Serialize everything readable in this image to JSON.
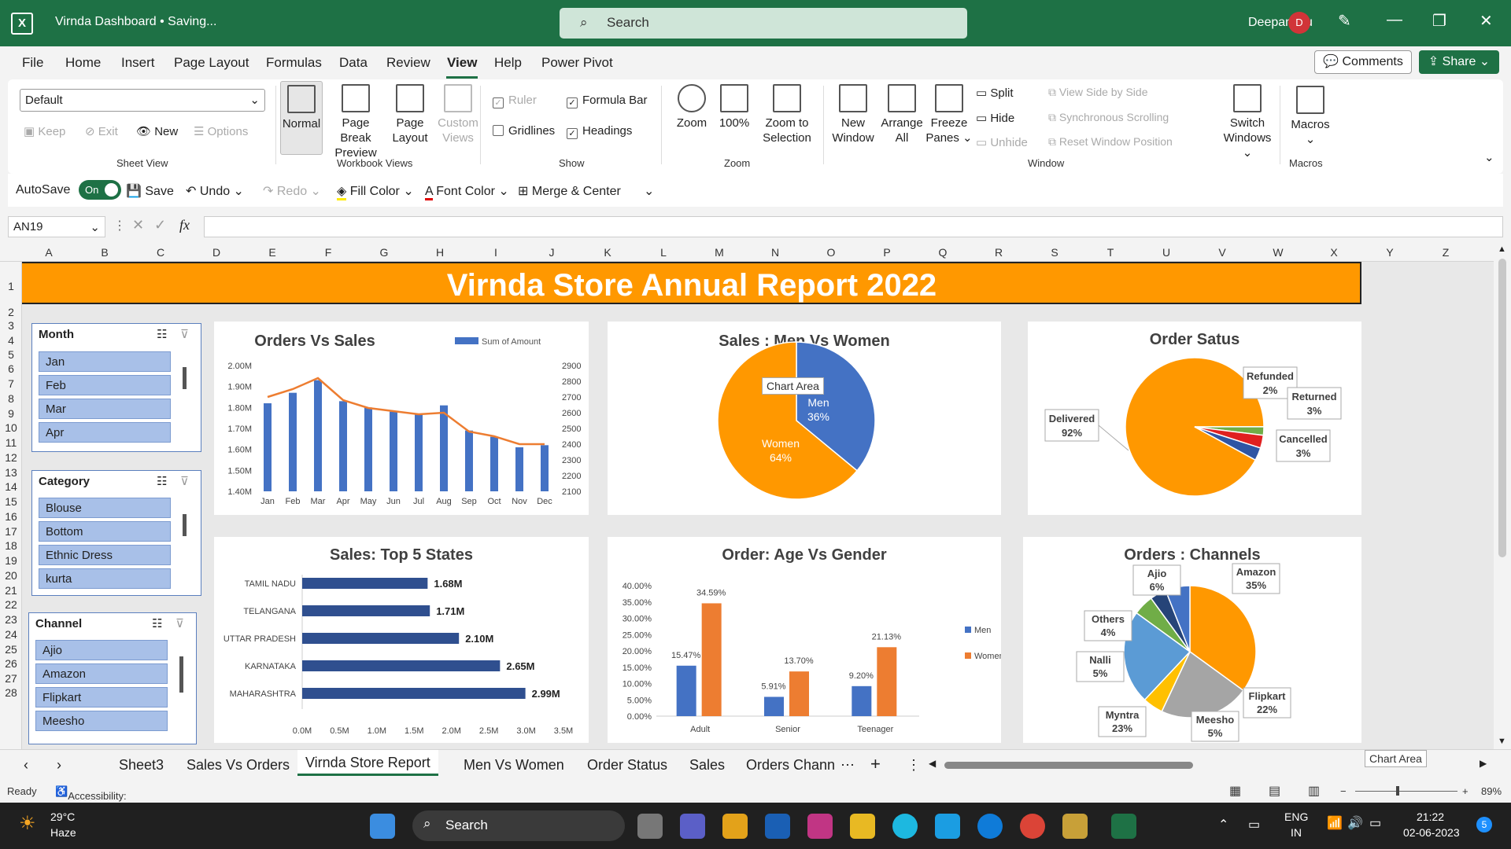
{
  "window": {
    "title": "Virnda Dashboard • Saving...",
    "search_placeholder": "Search",
    "user": "Deepanshu",
    "user_initial": "D"
  },
  "menu": [
    "File",
    "Home",
    "Insert",
    "Page Layout",
    "Formulas",
    "Data",
    "Review",
    "View",
    "Help",
    "Power Pivot"
  ],
  "menu_active": "View",
  "buttons": {
    "comments": "Comments",
    "share": "Share"
  },
  "ribbon": {
    "sheet_view": {
      "dropdown": "Default",
      "keep": "Keep",
      "exit": "Exit",
      "new": "New",
      "options": "Options",
      "label": "Sheet View"
    },
    "workbook_views": {
      "normal": "Normal",
      "page_break_1": "Page Break",
      "page_break_2": "Preview",
      "page_layout_1": "Page",
      "page_layout_2": "Layout",
      "custom_1": "Custom",
      "custom_2": "Views",
      "label": "Workbook Views"
    },
    "show": {
      "ruler": "Ruler",
      "formula_bar": "Formula Bar",
      "gridlines": "Gridlines",
      "headings": "Headings",
      "label": "Show"
    },
    "zoom": {
      "zoom": "Zoom",
      "hundred": "100%",
      "zoom_sel_1": "Zoom to",
      "zoom_sel_2": "Selection",
      "label": "Zoom"
    },
    "window": {
      "new_1": "New",
      "new_2": "Window",
      "arrange_1": "Arrange",
      "arrange_2": "All",
      "freeze_1": "Freeze",
      "freeze_2": "Panes",
      "split": "Split",
      "hide": "Hide",
      "unhide": "Unhide",
      "side_by_side": "View Side by Side",
      "sync_scroll": "Synchronous Scrolling",
      "reset_pos": "Reset Window Position",
      "switch_1": "Switch",
      "switch_2": "Windows",
      "label": "Window"
    },
    "macros": {
      "macros": "Macros",
      "label": "Macros"
    }
  },
  "qat": {
    "autosave": "AutoSave",
    "toggle": "On",
    "save": "Save",
    "undo": "Undo",
    "redo": "Redo",
    "fill": "Fill Color",
    "font": "Font Color",
    "merge": "Merge & Center"
  },
  "namebox": "AN19",
  "columns": [
    "A",
    "B",
    "C",
    "D",
    "E",
    "F",
    "G",
    "H",
    "I",
    "J",
    "K",
    "L",
    "M",
    "N",
    "O",
    "P",
    "Q",
    "R",
    "S",
    "T",
    "U",
    "V",
    "W",
    "X",
    "Y",
    "Z"
  ],
  "rows": [
    "1",
    "2",
    "3",
    "4",
    "5",
    "6",
    "7",
    "8",
    "9",
    "10",
    "11",
    "12",
    "13",
    "14",
    "15",
    "16",
    "17",
    "18",
    "19",
    "20",
    "21",
    "22",
    "23",
    "24",
    "25",
    "26",
    "27",
    "28"
  ],
  "banner": "Virnda Store Annual Report 2022",
  "slicers": [
    {
      "title": "Month",
      "items": [
        "Jan",
        "Feb",
        "Mar",
        "Apr"
      ]
    },
    {
      "title": "Category",
      "items": [
        "Blouse",
        "Bottom",
        "Ethnic Dress",
        "kurta"
      ]
    },
    {
      "title": "Channel",
      "items": [
        "Ajio",
        "Amazon",
        "Flipkart",
        "Meesho"
      ]
    }
  ],
  "chart_titles": {
    "orders_sales": "Orders Vs Sales",
    "men_women": "Sales : Men Vs Women",
    "order_status": "Order Satus",
    "top_states": "Sales: Top 5 States",
    "age_gender": "Order: Age Vs Gender",
    "channels": "Orders : Channels"
  },
  "chart_data": [
    {
      "type": "bar",
      "title": "Orders Vs Sales",
      "legend": "Sum of Amount",
      "categories": [
        "Jan",
        "Feb",
        "Mar",
        "Apr",
        "May",
        "Jun",
        "Jul",
        "Aug",
        "Sep",
        "Oct",
        "Nov",
        "Dec"
      ],
      "series": [
        {
          "name": "Sum of Amount",
          "values": [
            1.82,
            1.87,
            1.93,
            1.83,
            1.8,
            1.78,
            1.77,
            1.81,
            1.69,
            1.66,
            1.61,
            1.62
          ]
        }
      ],
      "line": [
        2700,
        2750,
        2820,
        2680,
        2630,
        2610,
        2590,
        2600,
        2480,
        2450,
        2400,
        2400
      ],
      "yticks": [
        "2.00M",
        "1.90M",
        "1.80M",
        "1.70M",
        "1.60M",
        "1.50M",
        "1.40M"
      ],
      "y2ticks": [
        "2900",
        "2800",
        "2700",
        "2600",
        "2500",
        "2400",
        "2300",
        "2200",
        "2100"
      ],
      "ylim": [
        1.4,
        2.0
      ],
      "y2lim": [
        2100,
        2900
      ]
    },
    {
      "type": "pie",
      "title": "Sales : Men Vs Women",
      "labels": [
        "Men",
        "Women"
      ],
      "values": [
        36,
        64
      ],
      "value_labels": [
        "36%",
        "64%"
      ],
      "colors": [
        "#4472c4",
        "#ff9800"
      ]
    },
    {
      "type": "pie",
      "title": "Order Satus",
      "labels": [
        "Delivered",
        "Refunded",
        "Returned",
        "Cancelled"
      ],
      "values": [
        92,
        2,
        3,
        3
      ],
      "value_labels": [
        "92%",
        "2%",
        "3%",
        "3%"
      ],
      "colors": [
        "#ff9800",
        "#70ad47",
        "#e02020",
        "#2f55a4"
      ]
    },
    {
      "type": "bar",
      "title": "Sales: Top 5 States",
      "categories": [
        "TAMIL NADU",
        "TELANGANA",
        "UTTAR PRADESH",
        "KARNATAKA",
        "MAHARASHTRA"
      ],
      "values": [
        1.68,
        1.71,
        2.1,
        2.65,
        2.99
      ],
      "value_labels": [
        "1.68M",
        "1.71M",
        "2.10M",
        "2.65M",
        "2.99M"
      ],
      "xticks": [
        "0.0M",
        "0.5M",
        "1.0M",
        "1.5M",
        "2.0M",
        "2.5M",
        "3.0M",
        "3.5M"
      ],
      "xlim": [
        0,
        3.5
      ]
    },
    {
      "type": "bar",
      "title": "Order: Age Vs Gender",
      "categories": [
        "Adult",
        "Senior",
        "Teenager"
      ],
      "series": [
        {
          "name": "Men",
          "values": [
            15.47,
            5.91,
            9.2
          ]
        },
        {
          "name": "Women",
          "values": [
            34.59,
            13.7,
            21.13
          ]
        }
      ],
      "value_labels": {
        "Men": [
          "15.47%",
          "5.91%",
          "9.20%"
        ],
        "Women": [
          "34.59%",
          "13.70%",
          "21.13%"
        ]
      },
      "yticks": [
        "40.00%",
        "35.00%",
        "30.00%",
        "25.00%",
        "20.00%",
        "15.00%",
        "10.00%",
        "5.00%",
        "0.00%"
      ],
      "ylim": [
        0,
        40
      ]
    },
    {
      "type": "pie",
      "title": "Orders : Channels",
      "labels": [
        "Amazon",
        "Flipkart",
        "Meesho",
        "Myntra",
        "Nalli",
        "Others",
        "Ajio"
      ],
      "values": [
        35,
        22,
        5,
        23,
        5,
        4,
        6
      ],
      "value_labels": [
        "35%",
        "22%",
        "5%",
        "23%",
        "5%",
        "4%",
        "6%"
      ],
      "colors": [
        "#ff9800",
        "#a5a5a5",
        "#ffc000",
        "#5b9bd5",
        "#70ad47",
        "#264478",
        "#4472c4"
      ]
    }
  ],
  "chart_area_label": "Chart Area",
  "tabs": [
    "Sheet3",
    "Sales Vs Orders",
    "Virnda Store Report",
    "Men Vs Women",
    "Order Status",
    "Sales",
    "Orders Chann"
  ],
  "active_tab": "Virnda Store Report",
  "status": {
    "ready": "Ready",
    "accessibility": "Accessibility: Investigate",
    "zoom": "89%"
  },
  "taskbar": {
    "temp": "29°C",
    "weather": "Haze",
    "search": "Search",
    "lang1": "ENG",
    "lang2": "IN",
    "time": "21:22",
    "date": "02-06-2023",
    "notif": "5"
  }
}
